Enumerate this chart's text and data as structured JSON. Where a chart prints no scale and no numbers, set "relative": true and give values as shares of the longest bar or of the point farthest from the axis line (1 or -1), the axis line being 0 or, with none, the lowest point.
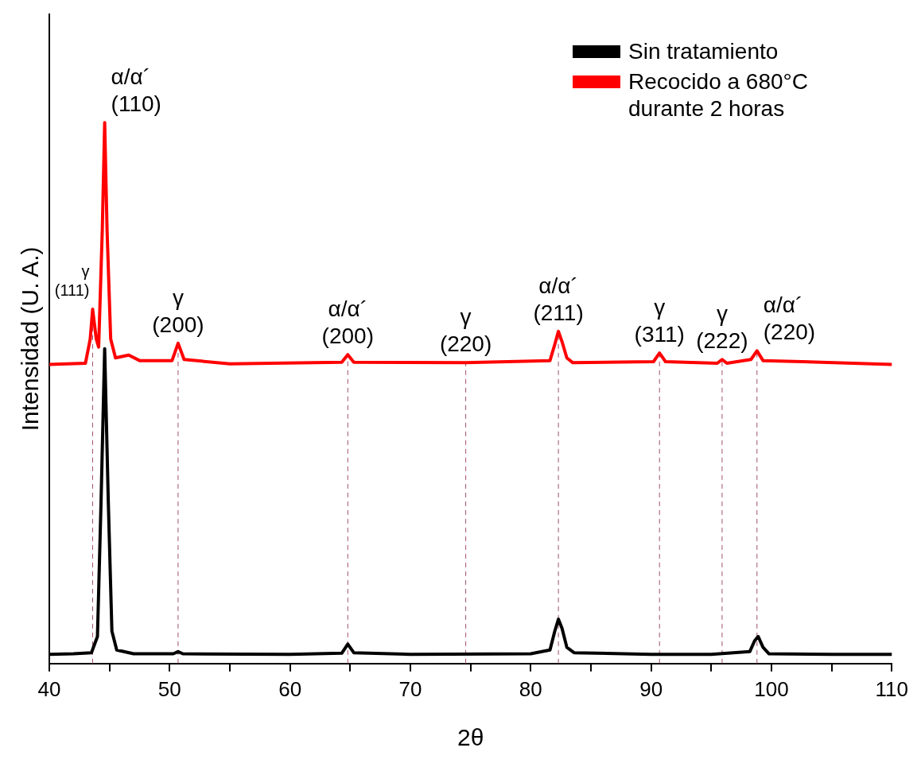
{
  "chart_data": {
    "type": "line",
    "relative": true,
    "xlabel": "2θ",
    "ylabel": "Intensidad (U. A.)",
    "xlim": [
      40,
      110
    ],
    "xticks": [
      40,
      {
        "value": 45,
        "label": null
      },
      50,
      {
        "value": 55,
        "label": null
      },
      60,
      {
        "value": 65,
        "label": null
      },
      70,
      {
        "value": 75,
        "label": null
      },
      80,
      {
        "value": 85,
        "label": null
      },
      90,
      {
        "value": 95,
        "label": null
      },
      100,
      {
        "value": 105,
        "label": null
      },
      110
    ],
    "grid": false,
    "legend": "top right",
    "marker": "none",
    "line_style": "solid",
    "series": [
      {
        "name": "Sin tratamiento",
        "color": "#000000",
        "x": [
          40,
          42,
          43.5,
          44.0,
          44.3,
          44.6,
          44.9,
          45.2,
          45.6,
          47,
          50.3,
          50.7,
          51.1,
          60,
          64.3,
          64.8,
          65.3,
          70,
          80,
          81.6,
          82.0,
          82.3,
          82.6,
          83.0,
          83.6,
          90,
          95,
          98.2,
          98.6,
          98.9,
          99.3,
          99.8,
          105,
          110
        ],
        "values": [
          0.017,
          0.018,
          0.02,
          0.05,
          0.3,
          0.582,
          0.3,
          0.06,
          0.025,
          0.018,
          0.018,
          0.022,
          0.018,
          0.017,
          0.019,
          0.036,
          0.02,
          0.017,
          0.018,
          0.025,
          0.06,
          0.082,
          0.065,
          0.03,
          0.02,
          0.017,
          0.017,
          0.022,
          0.042,
          0.05,
          0.03,
          0.018,
          0.017,
          0.017
        ]
      },
      {
        "name": "Recocido a 680°C\ndurante 2 horas",
        "color": "#ff0000",
        "x": [
          40,
          43,
          43.4,
          43.6,
          43.9,
          44.1,
          44.4,
          44.6,
          44.8,
          45.1,
          45.5,
          46.6,
          47.5,
          50.2,
          50.7,
          51.2,
          55,
          64.3,
          64.8,
          65.3,
          74.6,
          81.6,
          82.0,
          82.3,
          82.6,
          83.0,
          83.5,
          90.2,
          90.7,
          91.2,
          95.5,
          95.9,
          96.3,
          98.3,
          98.8,
          99.3,
          110
        ],
        "values": [
          0.553,
          0.555,
          0.6,
          0.655,
          0.6,
          0.585,
          0.8,
          1.0,
          0.8,
          0.6,
          0.565,
          0.57,
          0.56,
          0.56,
          0.592,
          0.562,
          0.554,
          0.557,
          0.571,
          0.557,
          0.556,
          0.56,
          0.59,
          0.614,
          0.595,
          0.565,
          0.556,
          0.558,
          0.574,
          0.558,
          0.555,
          0.562,
          0.555,
          0.562,
          0.578,
          0.56,
          0.553
        ]
      }
    ],
    "ref_lines": [
      {
        "axis": "x",
        "value": 43.6,
        "color": "#a05070",
        "line_style": "dashed"
      },
      {
        "axis": "x",
        "value": 50.7,
        "color": "#a05070",
        "line_style": "dashed"
      },
      {
        "axis": "x",
        "value": 64.8,
        "color": "#a05070",
        "line_style": "dashed"
      },
      {
        "axis": "x",
        "value": 74.6,
        "color": "#a05070",
        "line_style": "dashed"
      },
      {
        "axis": "x",
        "value": 82.3,
        "color": "#a05070",
        "line_style": "dashed"
      },
      {
        "axis": "x",
        "value": 90.7,
        "color": "#a05070",
        "line_style": "dashed"
      },
      {
        "axis": "x",
        "value": 95.9,
        "color": "#a05070",
        "line_style": "dashed"
      },
      {
        "axis": "x",
        "value": 98.8,
        "color": "#a05070",
        "line_style": "dashed"
      }
    ],
    "annotations": [
      {
        "text": "γ\n(111)",
        "x": 43.6,
        "y": 0.655
      },
      {
        "text": "α/α´\n(110)",
        "x": 44.6,
        "y": 1.0
      },
      {
        "text": "γ\n(200)",
        "x": 50.7,
        "y": 0.592
      },
      {
        "text": "α/α´\n(200)",
        "x": 64.8,
        "y": 0.571
      },
      {
        "text": "γ\n(220)",
        "x": 74.6,
        "y": 0.556
      },
      {
        "text": "α/α´\n(211)",
        "x": 82.3,
        "y": 0.614
      },
      {
        "text": "γ\n(311)",
        "x": 90.7,
        "y": 0.574
      },
      {
        "text": "γ\n(222)",
        "x": 95.9,
        "y": 0.562
      },
      {
        "text": "α/α´\n(220)",
        "x": 98.8,
        "y": 0.578
      }
    ]
  }
}
